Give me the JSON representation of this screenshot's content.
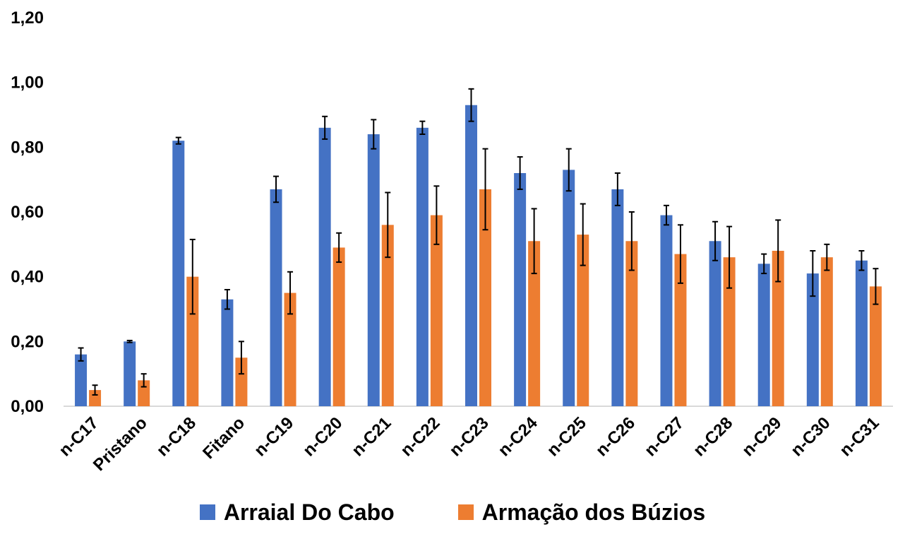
{
  "chart_data": {
    "type": "bar",
    "categories": [
      "n-C17",
      "Pristano",
      "n-C18",
      "Fitano",
      "n-C19",
      "n-C20",
      "n-C21",
      "n-C22",
      "n-C23",
      "n-C24",
      "n-C25",
      "n-C26",
      "n-C27",
      "n-C28",
      "n-C29",
      "n-C30",
      "n-C31"
    ],
    "series": [
      {
        "name": "Arraial Do Cabo",
        "color": "#4472C4",
        "values": [
          0.16,
          0.2,
          0.82,
          0.33,
          0.67,
          0.86,
          0.84,
          0.86,
          0.93,
          0.72,
          0.73,
          0.67,
          0.59,
          0.51,
          0.44,
          0.41,
          0.45
        ],
        "errors": [
          0.02,
          0.003,
          0.01,
          0.03,
          0.04,
          0.035,
          0.045,
          0.02,
          0.05,
          0.05,
          0.065,
          0.05,
          0.03,
          0.06,
          0.03,
          0.07,
          0.03
        ]
      },
      {
        "name": "Armação dos Búzios",
        "color": "#ED7D31",
        "values": [
          0.05,
          0.08,
          0.4,
          0.15,
          0.35,
          0.49,
          0.56,
          0.59,
          0.67,
          0.51,
          0.53,
          0.51,
          0.47,
          0.46,
          0.48,
          0.46,
          0.37
        ],
        "errors": [
          0.015,
          0.02,
          0.115,
          0.05,
          0.065,
          0.045,
          0.1,
          0.09,
          0.125,
          0.1,
          0.095,
          0.09,
          0.09,
          0.095,
          0.095,
          0.04,
          0.055
        ]
      }
    ],
    "ylim": [
      0,
      1.2
    ],
    "yticks": [
      "0,00",
      "0,20",
      "0,40",
      "0,60",
      "0,80",
      "1,00",
      "1,20"
    ],
    "grid": false,
    "legend_position": "bottom"
  },
  "legend": {
    "items": [
      {
        "label": "Arraial Do Cabo"
      },
      {
        "label": "Armação dos Búzios"
      }
    ]
  }
}
